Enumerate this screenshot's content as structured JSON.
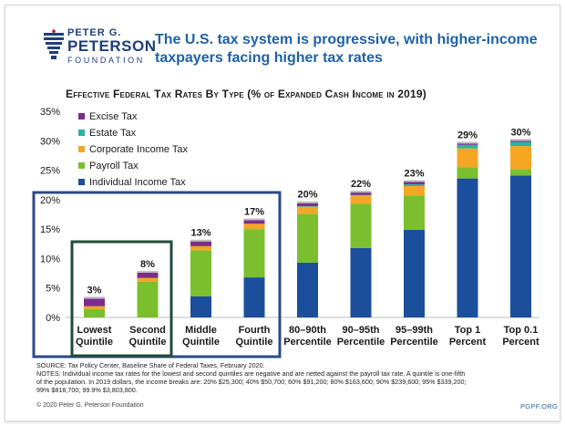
{
  "logo": {
    "line1": "PETER G.",
    "line2": "PETERSON",
    "line3": "FOUNDATION",
    "icon": "torch-icon"
  },
  "headline": "The U.S. tax system is progressive, with higher-income taxpayers facing higher tax rates",
  "source_lines": [
    "SOURCE: Tax Policy Center, Baseline Share of Federal Taxes, February 2020.",
    "NOTES: Individual income tax rates for the lowest and second quintiles are negative and are netted against the payroll tax rate. A quintile is one-fifth",
    "of the population. In 2019 dollars, the income breaks are: 20% $25,300; 40% $50,700; 60% $91,200; 80% $163,600; 90% $239,600; 95% $339,200;",
    "99% $818,700; 99.9% $3,803,800."
  ],
  "copyright": "© 2020 Peter G. Peterson Foundation",
  "site": "PGPF.ORG",
  "colors": {
    "headline": "#1f61a8",
    "highlight_quintiles": "#2b4a85",
    "highlight_bottom": "#1f4d3a"
  },
  "chart_data": {
    "type": "bar",
    "stacked": true,
    "title": "Effective Federal Tax Rates By Type (% of Expanded Cash Income in 2019)",
    "categories": [
      "Lowest Quintile",
      "Second Quintile",
      "Middle Quintile",
      "Fourth Quintile",
      "80–90th Percentile",
      "90–95th Percentile",
      "95–99th Percentile",
      "Top 1 Percent",
      "Top 0.1 Percent"
    ],
    "category_lines": [
      [
        "Lowest",
        "Quintile"
      ],
      [
        "Second",
        "Quintile"
      ],
      [
        "Middle",
        "Quintile"
      ],
      [
        "Fourth",
        "Quintile"
      ],
      [
        "80–90th",
        "Percentile"
      ],
      [
        "90–95th",
        "Percentile"
      ],
      [
        "95–99th",
        "Percentile"
      ],
      [
        "Top 1",
        "Percent"
      ],
      [
        "Top 0.1",
        "Percent"
      ]
    ],
    "totals": [
      "3%",
      "8%",
      "13%",
      "17%",
      "20%",
      "22%",
      "23%",
      "29%",
      "30%"
    ],
    "ylim": [
      0,
      35
    ],
    "yticks": [
      "0%",
      "5%",
      "10%",
      "15%",
      "20%",
      "25%",
      "30%",
      "35%"
    ],
    "series": [
      {
        "name": "Individual Income Tax",
        "color": "#1b4f9c",
        "values": [
          0,
          0,
          3.6,
          6.8,
          9.3,
          11.8,
          14.9,
          23.6,
          24.1
        ]
      },
      {
        "name": "Payroll Tax",
        "color": "#7bbf2e",
        "values": [
          1.4,
          6.1,
          7.8,
          8.2,
          8.3,
          7.5,
          5.8,
          1.9,
          1.1
        ]
      },
      {
        "name": "Corporate Income Tax",
        "color": "#f5a623",
        "values": [
          0.5,
          0.6,
          0.7,
          0.9,
          1.2,
          1.4,
          1.6,
          3.2,
          3.9
        ]
      },
      {
        "name": "Estate Tax",
        "color": "#2bb3a3",
        "values": [
          0,
          0,
          0,
          0,
          0.1,
          0.1,
          0.3,
          0.6,
          0.7
        ]
      },
      {
        "name": "Excise Tax",
        "color": "#7b2d8e",
        "values": [
          1.3,
          0.9,
          0.8,
          0.6,
          0.5,
          0.4,
          0.4,
          0.2,
          0.2
        ]
      }
    ],
    "legend": [
      "Excise Tax",
      "Estate Tax",
      "Corporate Income Tax",
      "Payroll Tax",
      "Individual Income Tax"
    ],
    "legend_position": "top-left",
    "grid": false
  }
}
